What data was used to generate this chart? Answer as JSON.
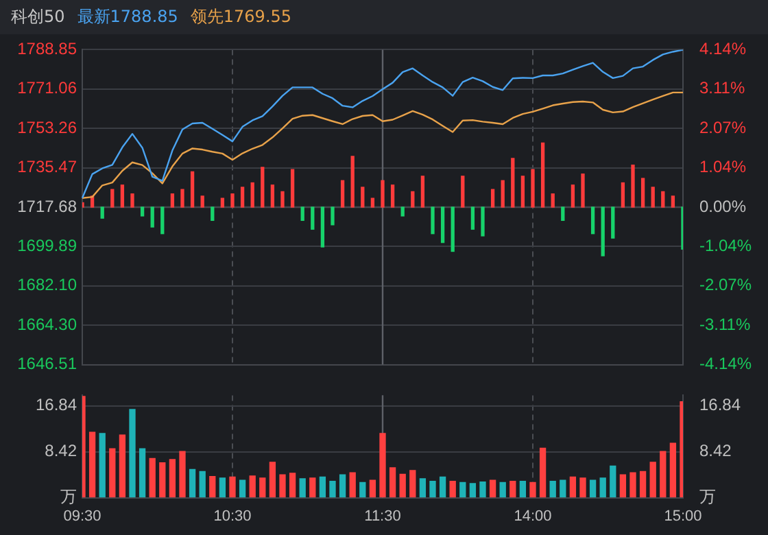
{
  "chart_data": [
    {
      "type": "line",
      "title": "科创50",
      "legend": "top left",
      "marker": "none",
      "grid": true,
      "tick_labels": "y",
      "categories": [
        "09:30",
        null,
        null,
        null,
        null,
        null,
        null,
        null,
        null,
        null,
        null,
        null,
        null,
        null,
        null,
        "10:30",
        null,
        null,
        null,
        null,
        null,
        null,
        null,
        null,
        null,
        null,
        null,
        null,
        null,
        null,
        "11:30",
        null,
        null,
        null,
        null,
        null,
        null,
        null,
        null,
        null,
        null,
        null,
        null,
        null,
        null,
        "14:00",
        null,
        null,
        null,
        null,
        null,
        null,
        null,
        null,
        null,
        null,
        null,
        null,
        null,
        null,
        "15:00"
      ],
      "ylim": [
        1646.51,
        1788.85
      ],
      "yticks": [
        {
          "value": 1646.51,
          "label": "1646.51"
        },
        {
          "value": 1664.3,
          "label": "1664.30"
        },
        {
          "value": 1682.1,
          "label": "1682.10"
        },
        {
          "value": 1699.89,
          "label": "1699.89"
        },
        {
          "value": 1717.68,
          "label": "1717.68"
        },
        {
          "value": 1735.47,
          "label": "1735.47"
        },
        {
          "value": 1753.26,
          "label": "1753.26"
        },
        {
          "value": 1771.06,
          "label": "1771.06"
        },
        {
          "value": 1788.85,
          "label": "1788.85"
        }
      ],
      "y2lim": [
        -4.14,
        4.14
      ],
      "y2ticks": [
        {
          "value": -4.14,
          "label": "-4.14%"
        },
        {
          "value": -3.11,
          "label": "-3.11%"
        },
        {
          "value": -2.07,
          "label": "-2.07%"
        },
        {
          "value": -1.04,
          "label": "-1.04%"
        },
        {
          "value": 0,
          "label": "0.00%"
        },
        {
          "value": 1.04,
          "label": "1.04%"
        },
        {
          "value": 2.07,
          "label": "2.07%"
        },
        {
          "value": 3.11,
          "label": "3.11%"
        },
        {
          "value": 4.14,
          "label": "4.14%"
        }
      ],
      "ref_lines": [
        {
          "axis": "y",
          "value": 1717.68,
          "color": "#44474d"
        },
        {
          "axis": "x",
          "value": "11:30",
          "color": "#5e6168"
        }
      ],
      "series": [
        {
          "name": "最新1788.85",
          "color": "#4aa3f0",
          "values": [
            1721.8,
            1732.6,
            1735.2,
            1736.8,
            1744.7,
            1750.8,
            1744.5,
            1731.4,
            1729.6,
            1743.3,
            1752.8,
            1755.5,
            1755.8,
            1753.1,
            1750.3,
            1747.4,
            1754.0,
            1756.9,
            1758.8,
            1763.2,
            1768.0,
            1771.8,
            1771.8,
            1771.8,
            1768.9,
            1766.9,
            1763.5,
            1762.8,
            1765.7,
            1767.9,
            1771.0,
            1773.9,
            1778.7,
            1780.4,
            1777.2,
            1774.2,
            1771.8,
            1768.0,
            1774.2,
            1776.2,
            1774.6,
            1772.0,
            1770.6,
            1775.9,
            1776.1,
            1776.0,
            1777.2,
            1777.2,
            1778.1,
            1779.8,
            1781.4,
            1782.9,
            1778.8,
            1776.0,
            1777.0,
            1780.4,
            1781.2,
            1784.2,
            1786.7,
            1787.9,
            1788.8
          ]
        },
        {
          "name": "领先1769.55",
          "color": "#e8a24a",
          "values": [
            1721.8,
            1722.3,
            1727.5,
            1728.8,
            1734.1,
            1737.9,
            1736.7,
            1733.0,
            1728.4,
            1736.1,
            1741.9,
            1744.2,
            1743.7,
            1742.7,
            1741.9,
            1739.1,
            1742.0,
            1744.1,
            1745.8,
            1749.2,
            1753.3,
            1757.6,
            1759.0,
            1759.3,
            1757.9,
            1756.5,
            1755.2,
            1757.5,
            1758.9,
            1759.3,
            1756.5,
            1757.2,
            1759.1,
            1761.1,
            1759.5,
            1757.3,
            1754.4,
            1751.6,
            1756.8,
            1757.0,
            1756.3,
            1755.8,
            1755.2,
            1758.0,
            1759.8,
            1760.8,
            1762.2,
            1763.7,
            1764.5,
            1765.2,
            1765.4,
            1765.0,
            1761.7,
            1760.5,
            1760.9,
            1762.9,
            1764.6,
            1766.3,
            1767.9,
            1769.5,
            1769.5
          ]
        },
        {
          "type": "bar",
          "base": [
            1717.68,
            1717.68,
            1717.68,
            1717.68,
            1717.68,
            1717.68,
            1717.68,
            1717.68,
            1717.68,
            1717.68,
            1717.68,
            1717.68,
            1717.68,
            1717.68,
            1717.68,
            1717.68,
            1717.68,
            1717.68,
            1717.68,
            1717.68,
            1717.68,
            1717.68,
            1717.68,
            1717.68,
            1717.68,
            1717.68,
            1717.68,
            1717.68,
            1717.68,
            1717.68,
            1717.68,
            1717.68,
            1717.68,
            1717.68,
            1717.68,
            1717.68,
            1717.68,
            1717.68,
            1717.68,
            1717.68,
            1717.68,
            1717.68,
            1717.68,
            1717.68,
            1717.68,
            1717.68,
            1717.68,
            1717.68,
            1717.68,
            1717.68,
            1717.68,
            1717.68,
            1717.68,
            1717.68,
            1717.68,
            1717.68,
            1717.68,
            1717.68,
            1717.68,
            1717.68,
            1717.68
          ],
          "values": [
            2,
            5,
            -5,
            8,
            10,
            6,
            -4,
            -9,
            -12,
            6,
            8,
            16,
            5,
            -6,
            4,
            6,
            9,
            11,
            18,
            10,
            7,
            17,
            -6,
            -10,
            -18,
            -8,
            12,
            23,
            9,
            4,
            12,
            10,
            -4,
            7,
            14,
            -12,
            -16,
            -20,
            14,
            -10,
            -13,
            8,
            12,
            22,
            14,
            17,
            29,
            6,
            -6,
            10,
            15,
            -12,
            -22,
            -14,
            11,
            19,
            13,
            9,
            7,
            5,
            -19
          ],
          "colors": [
            "#ff3b3b",
            "#ff3b3b",
            "#17d36b",
            "#ff3b3b",
            "#ff3b3b",
            "#ff3b3b",
            "#17d36b",
            "#17d36b",
            "#17d36b",
            "#ff3b3b",
            "#ff3b3b",
            "#ff3b3b",
            "#ff3b3b",
            "#17d36b",
            "#ff3b3b",
            "#ff3b3b",
            "#ff3b3b",
            "#ff3b3b",
            "#ff3b3b",
            "#ff3b3b",
            "#ff3b3b",
            "#ff3b3b",
            "#17d36b",
            "#17d36b",
            "#17d36b",
            "#17d36b",
            "#ff3b3b",
            "#ff3b3b",
            "#ff3b3b",
            "#ff3b3b",
            "#ff3b3b",
            "#ff3b3b",
            "#17d36b",
            "#ff3b3b",
            "#ff3b3b",
            "#17d36b",
            "#17d36b",
            "#17d36b",
            "#ff3b3b",
            "#17d36b",
            "#17d36b",
            "#ff3b3b",
            "#ff3b3b",
            "#ff3b3b",
            "#ff3b3b",
            "#ff3b3b",
            "#ff3b3b",
            "#ff3b3b",
            "#17d36b",
            "#ff3b3b",
            "#ff3b3b",
            "#17d36b",
            "#17d36b",
            "#17d36b",
            "#ff3b3b",
            "#ff3b3b",
            "#ff3b3b",
            "#ff3b3b",
            "#ff3b3b",
            "#ff3b3b",
            "#17d36b"
          ]
        }
      ]
    },
    {
      "type": "bar",
      "grid": true,
      "categories": [
        "09:30",
        null,
        null,
        null,
        null,
        null,
        null,
        null,
        null,
        null,
        null,
        null,
        null,
        null,
        null,
        "10:30",
        null,
        null,
        null,
        null,
        null,
        null,
        null,
        null,
        null,
        null,
        null,
        null,
        null,
        null,
        "11:30",
        null,
        null,
        null,
        null,
        null,
        null,
        null,
        null,
        null,
        null,
        null,
        null,
        null,
        null,
        "14:00",
        null,
        null,
        null,
        null,
        null,
        null,
        null,
        null,
        null,
        null,
        null,
        null,
        null,
        null,
        "15:00"
      ],
      "values": [
        18.6,
        12.0,
        11.8,
        9.0,
        11.5,
        16.2,
        9.0,
        7.2,
        6.4,
        7.0,
        8.5,
        5.2,
        4.8,
        3.9,
        3.6,
        3.8,
        3.2,
        4.0,
        3.6,
        6.5,
        4.2,
        4.5,
        3.5,
        3.6,
        3.8,
        3.0,
        4.2,
        4.6,
        2.8,
        3.2,
        11.8,
        5.5,
        4.3,
        5.0,
        3.5,
        3.0,
        3.8,
        3.0,
        2.8,
        2.6,
        2.9,
        3.2,
        2.8,
        3.0,
        3.0,
        2.8,
        9.1,
        3.0,
        3.2,
        3.8,
        3.6,
        3.2,
        3.6,
        5.8,
        4.2,
        4.6,
        4.8,
        6.5,
        8.5,
        10.0,
        17.6
      ],
      "colors": [
        "#ff4040",
        "#ff4040",
        "#1fb3b8",
        "#ff4040",
        "#ff4040",
        "#1fb3b8",
        "#1fb3b8",
        "#ff4040",
        "#ff4040",
        "#ff4040",
        "#ff4040",
        "#1fb3b8",
        "#1fb3b8",
        "#ff4040",
        "#1fb3b8",
        "#ff4040",
        "#1fb3b8",
        "#ff4040",
        "#ff4040",
        "#ff4040",
        "#ff4040",
        "#ff4040",
        "#1fb3b8",
        "#ff4040",
        "#1fb3b8",
        "#1fb3b8",
        "#1fb3b8",
        "#ff4040",
        "#1fb3b8",
        "#ff4040",
        "#ff4040",
        "#ff4040",
        "#ff4040",
        "#ff4040",
        "#1fb3b8",
        "#1fb3b8",
        "#1fb3b8",
        "#ff4040",
        "#1fb3b8",
        "#1fb3b8",
        "#1fb3b8",
        "#ff4040",
        "#1fb3b8",
        "#ff4040",
        "#1fb3b8",
        "#ff4040",
        "#ff4040",
        "#1fb3b8",
        "#1fb3b8",
        "#ff4040",
        "#ff4040",
        "#1fb3b8",
        "#1fb3b8",
        "#1fb3b8",
        "#ff4040",
        "#ff4040",
        "#ff4040",
        "#ff4040",
        "#ff4040",
        "#ff4040",
        "#ff4040"
      ],
      "ylim": [
        0,
        18.78
      ],
      "yticks": [
        {
          "value": 0,
          "label": "万"
        },
        8.42,
        16.84
      ],
      "y2lim": [
        0,
        18.78
      ],
      "y2ticks": [
        {
          "value": 0,
          "label": "万"
        },
        8.42,
        16.84
      ],
      "ref_lines": [
        {
          "axis": "x",
          "value": "11:30",
          "color": "#5e6168"
        }
      ]
    }
  ]
}
